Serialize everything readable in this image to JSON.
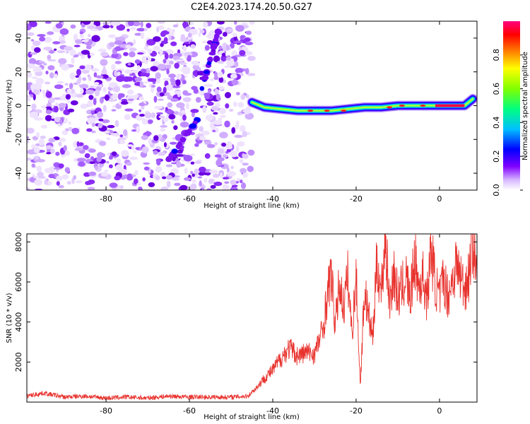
{
  "title": "C2E4.2023.174.20.50.G27",
  "chart_data": [
    {
      "type": "heatmap",
      "xlabel": "Height of straight line (km)",
      "ylabel": "Frequency (Hz)",
      "xlim": [
        -99,
        9
      ],
      "ylim": [
        -50,
        50
      ],
      "x_ticks": [
        -80,
        -60,
        -40,
        -20,
        0
      ],
      "y_ticks": [
        -40,
        -20,
        0,
        20,
        40
      ],
      "noise_region": {
        "x": [
          -99,
          -45
        ],
        "y": [
          -50,
          50
        ]
      },
      "signal_track": {
        "x": [
          -45,
          -42,
          -38,
          -34,
          -30,
          -26,
          -22,
          -18,
          -14,
          -10,
          -6,
          -2,
          2,
          6,
          8
        ],
        "freq": [
          2,
          -1,
          -2,
          -3,
          -3,
          -3,
          -2,
          -1,
          -1,
          0,
          0,
          0,
          0,
          0,
          4
        ]
      },
      "faint_streaks": [
        {
          "x": [
            -65,
            -58
          ],
          "freq": [
            -32,
            -8
          ]
        },
        {
          "x": [
            -57,
            -53
          ],
          "freq": [
            10,
            45
          ]
        }
      ],
      "colorbar": {
        "label": "Normalized spectral amplitude",
        "ticks": [
          "0.0",
          "0.2",
          "0.4",
          "0.6",
          "0.8"
        ],
        "range": [
          0,
          1
        ],
        "colors": [
          "#ffffff",
          "#d7b8ff",
          "#8000ff",
          "#0000ff",
          "#00c0ff",
          "#00ff80",
          "#c0ff00",
          "#ff8000",
          "#ff0000",
          "#ff0080"
        ]
      },
      "grid": false
    },
    {
      "type": "line",
      "xlabel": "Height of straight line (km)",
      "ylabel": "SNR (10 * v/v)",
      "xlim": [
        -99,
        9
      ],
      "ylim": [
        0,
        8400
      ],
      "x_ticks": [
        -80,
        -60,
        -40,
        -20,
        0
      ],
      "y_ticks": [
        2000,
        4000,
        6000,
        8000
      ],
      "color": "#e8322d",
      "series": [
        {
          "x": [
            -99,
            -95,
            -90,
            -85,
            -80,
            -75,
            -70,
            -65,
            -60,
            -55,
            -50,
            -46,
            -44,
            -42,
            -40,
            -38,
            -36,
            -34,
            -32,
            -30,
            -28,
            -27,
            -26,
            -25,
            -24,
            -23,
            -22,
            -21,
            -20,
            -19,
            -18,
            -17,
            -16,
            -15,
            -14,
            -13,
            -12,
            -11,
            -10,
            -9,
            -8,
            -7,
            -6,
            -5,
            -4,
            -3,
            -2,
            -1,
            0,
            1,
            2,
            3,
            4,
            5,
            6,
            7,
            8,
            9
          ],
          "y": [
            300,
            450,
            250,
            300,
            200,
            250,
            200,
            300,
            250,
            250,
            250,
            300,
            700,
            1200,
            1600,
            2200,
            2700,
            2300,
            2500,
            2400,
            3600,
            5200,
            6400,
            3800,
            6000,
            4700,
            6300,
            3400,
            6300,
            800,
            5600,
            4300,
            3200,
            7100,
            5400,
            8300,
            4900,
            6500,
            5200,
            5700,
            6300,
            5000,
            7300,
            5700,
            6300,
            5100,
            7700,
            5900,
            5200,
            6200,
            5300,
            6000,
            6900,
            6300,
            5700,
            6300,
            8200,
            6000
          ]
        }
      ],
      "grid": false
    }
  ]
}
